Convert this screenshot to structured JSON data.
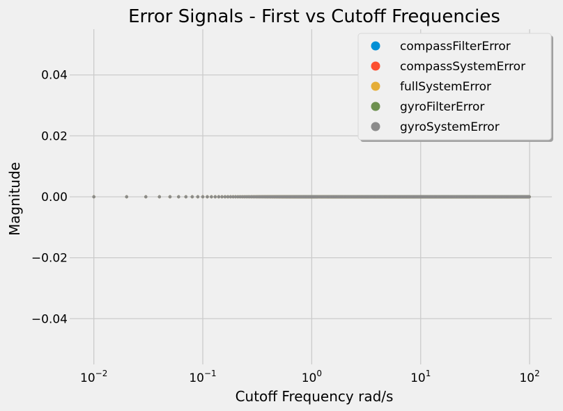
{
  "chart_data": {
    "type": "scatter",
    "title": "Error Signals - First vs Cutoff Frequencies",
    "xlabel": "Cutoff Frequency rad/s",
    "ylabel": "Magnitude",
    "xscale": "log",
    "xlim": [
      0.006,
      160
    ],
    "ylim": [
      -0.055,
      0.055
    ],
    "grid": true,
    "legend_position": "top-right",
    "x_ticks": [
      {
        "value": 0.01,
        "base": "10",
        "exp": "−2"
      },
      {
        "value": 0.1,
        "base": "10",
        "exp": "−1"
      },
      {
        "value": 1,
        "base": "10",
        "exp": "0"
      },
      {
        "value": 10,
        "base": "10",
        "exp": "1"
      },
      {
        "value": 100,
        "base": "10",
        "exp": "2"
      }
    ],
    "y_ticks": [
      {
        "value": 0.04,
        "label": "0.04"
      },
      {
        "value": 0.02,
        "label": "0.02"
      },
      {
        "value": 0.0,
        "label": "0.00"
      },
      {
        "value": -0.02,
        "label": "−0.02"
      },
      {
        "value": -0.04,
        "label": "−0.04"
      }
    ],
    "x_range": {
      "start": 0.01,
      "end": 100,
      "step": 0.01
    },
    "series": [
      {
        "name": "compassFilterError",
        "color": "#008fd5",
        "y": 0.0
      },
      {
        "name": "compassSystemError",
        "color": "#fc4f30",
        "y": 0.0
      },
      {
        "name": "fullSystemError",
        "color": "#e5ae38",
        "y": 0.0
      },
      {
        "name": "gyroFilterError",
        "color": "#6d904f",
        "y": 0.0
      },
      {
        "name": "gyroSystemError",
        "color": "#8b8b8b",
        "y": 0.0
      }
    ]
  }
}
